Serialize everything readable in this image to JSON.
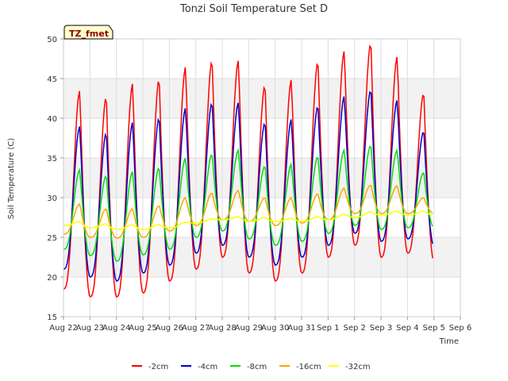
{
  "chart_data": {
    "type": "line",
    "title": "Tonzi Soil Temperature Set D",
    "xlabel": "Time",
    "ylabel": "Soil Temperature (C)",
    "site_label": "TZ_fmet",
    "ylim": [
      15,
      50
    ],
    "xlim_days": [
      0,
      15
    ],
    "grid": true,
    "legend_position": "bottom",
    "y_ticks": [
      "15",
      "20",
      "25",
      "30",
      "35",
      "40",
      "45",
      "50"
    ],
    "x_ticks": [
      "Aug 22",
      "Aug 23",
      "Aug 24",
      "Aug 25",
      "Aug 26",
      "Aug 27",
      "Aug 28",
      "Aug 29",
      "Aug 30",
      "Aug 31",
      "Sep 1",
      "Sep 2",
      "Sep 3",
      "Sep 4",
      "Sep 5",
      "Sep 6"
    ],
    "x_start": "Aug 22",
    "x_end": "Sep 5",
    "series": [
      {
        "name": "-2cm",
        "color": "#ff0000",
        "daily_min": [
          18.5,
          17.5,
          17.5,
          18.0,
          19.5,
          21.0,
          22.5,
          20.5,
          19.5,
          20.5,
          22.5,
          24.0,
          22.5,
          23.0,
          21.8
        ],
        "daily_max": [
          43.5,
          42.8,
          44.4,
          45.0,
          46.5,
          47.3,
          47.3,
          44.2,
          44.9,
          47.2,
          48.5,
          49.5,
          47.8,
          43.2
        ]
      },
      {
        "name": "-4cm",
        "color": "#0000cc",
        "daily_min": [
          21.0,
          20.0,
          19.5,
          20.5,
          21.5,
          23.0,
          24.0,
          22.5,
          21.5,
          22.5,
          24.0,
          25.5,
          24.5,
          24.8,
          23.8
        ],
        "daily_max": [
          39.0,
          38.2,
          39.5,
          40.1,
          41.3,
          42.0,
          42.0,
          39.5,
          39.9,
          41.6,
          42.8,
          43.6,
          42.3,
          38.4
        ]
      },
      {
        "name": "-8cm",
        "color": "#00dd00",
        "daily_min": [
          23.5,
          22.7,
          22.0,
          22.8,
          23.5,
          25.0,
          25.8,
          24.8,
          24.0,
          24.5,
          25.5,
          26.5,
          26.0,
          26.2,
          26.2
        ],
        "daily_max": [
          33.5,
          32.8,
          33.3,
          33.8,
          35.0,
          35.5,
          36.0,
          34.0,
          34.2,
          35.2,
          36.0,
          36.6,
          36.0,
          33.2
        ]
      },
      {
        "name": "-16cm",
        "color": "#ffa500",
        "daily_min": [
          25.4,
          25.0,
          24.9,
          25.0,
          25.8,
          26.5,
          27.2,
          27.0,
          26.5,
          26.8,
          27.2,
          28.0,
          28.0,
          28.0,
          28.0
        ],
        "daily_max": [
          29.2,
          28.6,
          28.6,
          29.0,
          30.0,
          30.6,
          30.9,
          30.0,
          30.0,
          30.5,
          31.2,
          31.6,
          31.5,
          30.0
        ]
      },
      {
        "name": "-32cm",
        "color": "#ffff00",
        "daily_min": [
          26.5,
          26.2,
          26.0,
          26.0,
          26.2,
          26.8,
          27.2,
          27.0,
          27.0,
          27.0,
          27.2,
          27.5,
          27.8,
          27.8,
          27.8
        ],
        "daily_max": [
          27.0,
          26.7,
          26.6,
          26.6,
          26.9,
          27.3,
          27.6,
          27.5,
          27.4,
          27.6,
          27.9,
          28.2,
          28.3,
          28.3
        ]
      }
    ]
  }
}
